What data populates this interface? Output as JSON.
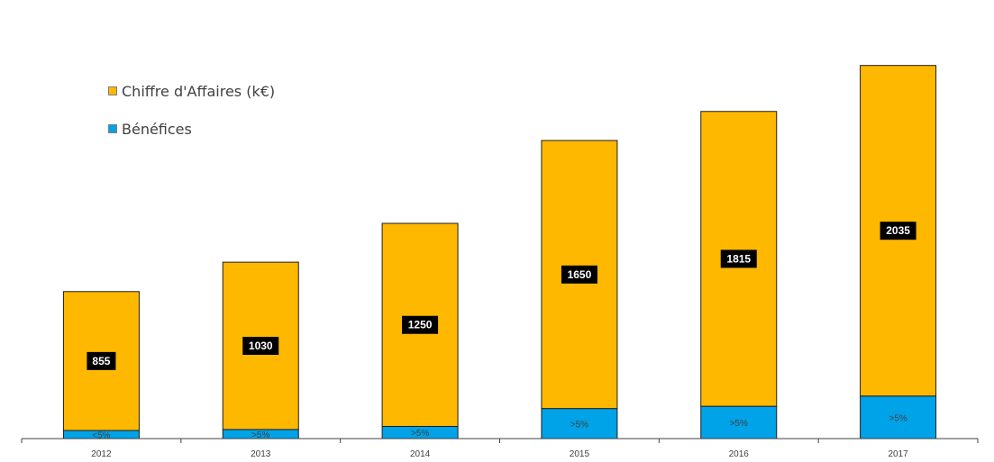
{
  "chart_data": {
    "type": "bar",
    "stacked": true,
    "categories": [
      "2012",
      "2013",
      "2014",
      "2015",
      "2016",
      "2017"
    ],
    "series": [
      {
        "name": "Bénéfices",
        "color": "#00A2E8",
        "values": [
          50,
          56,
          75,
          185,
          199,
          262
        ],
        "labels": [
          "<5%",
          ">5%",
          ">5%",
          ">5%",
          ">5%",
          ">5%"
        ]
      },
      {
        "name": "Chiffre d'Affaires (k€)",
        "color": "#FFB800",
        "values": [
          855,
          1030,
          1250,
          1650,
          1815,
          2035
        ],
        "labels": [
          "855",
          "1030",
          "1250",
          "1650",
          "1815",
          "2035"
        ]
      }
    ],
    "ylim": [
      0,
      2700
    ],
    "grid": false,
    "legend_position": "top-left"
  },
  "legend": {
    "items": [
      {
        "label": "Chiffre d'Affaires (k€)",
        "color": "#FFB800"
      },
      {
        "label": "Bénéfices",
        "color": "#00A2E8"
      }
    ]
  }
}
